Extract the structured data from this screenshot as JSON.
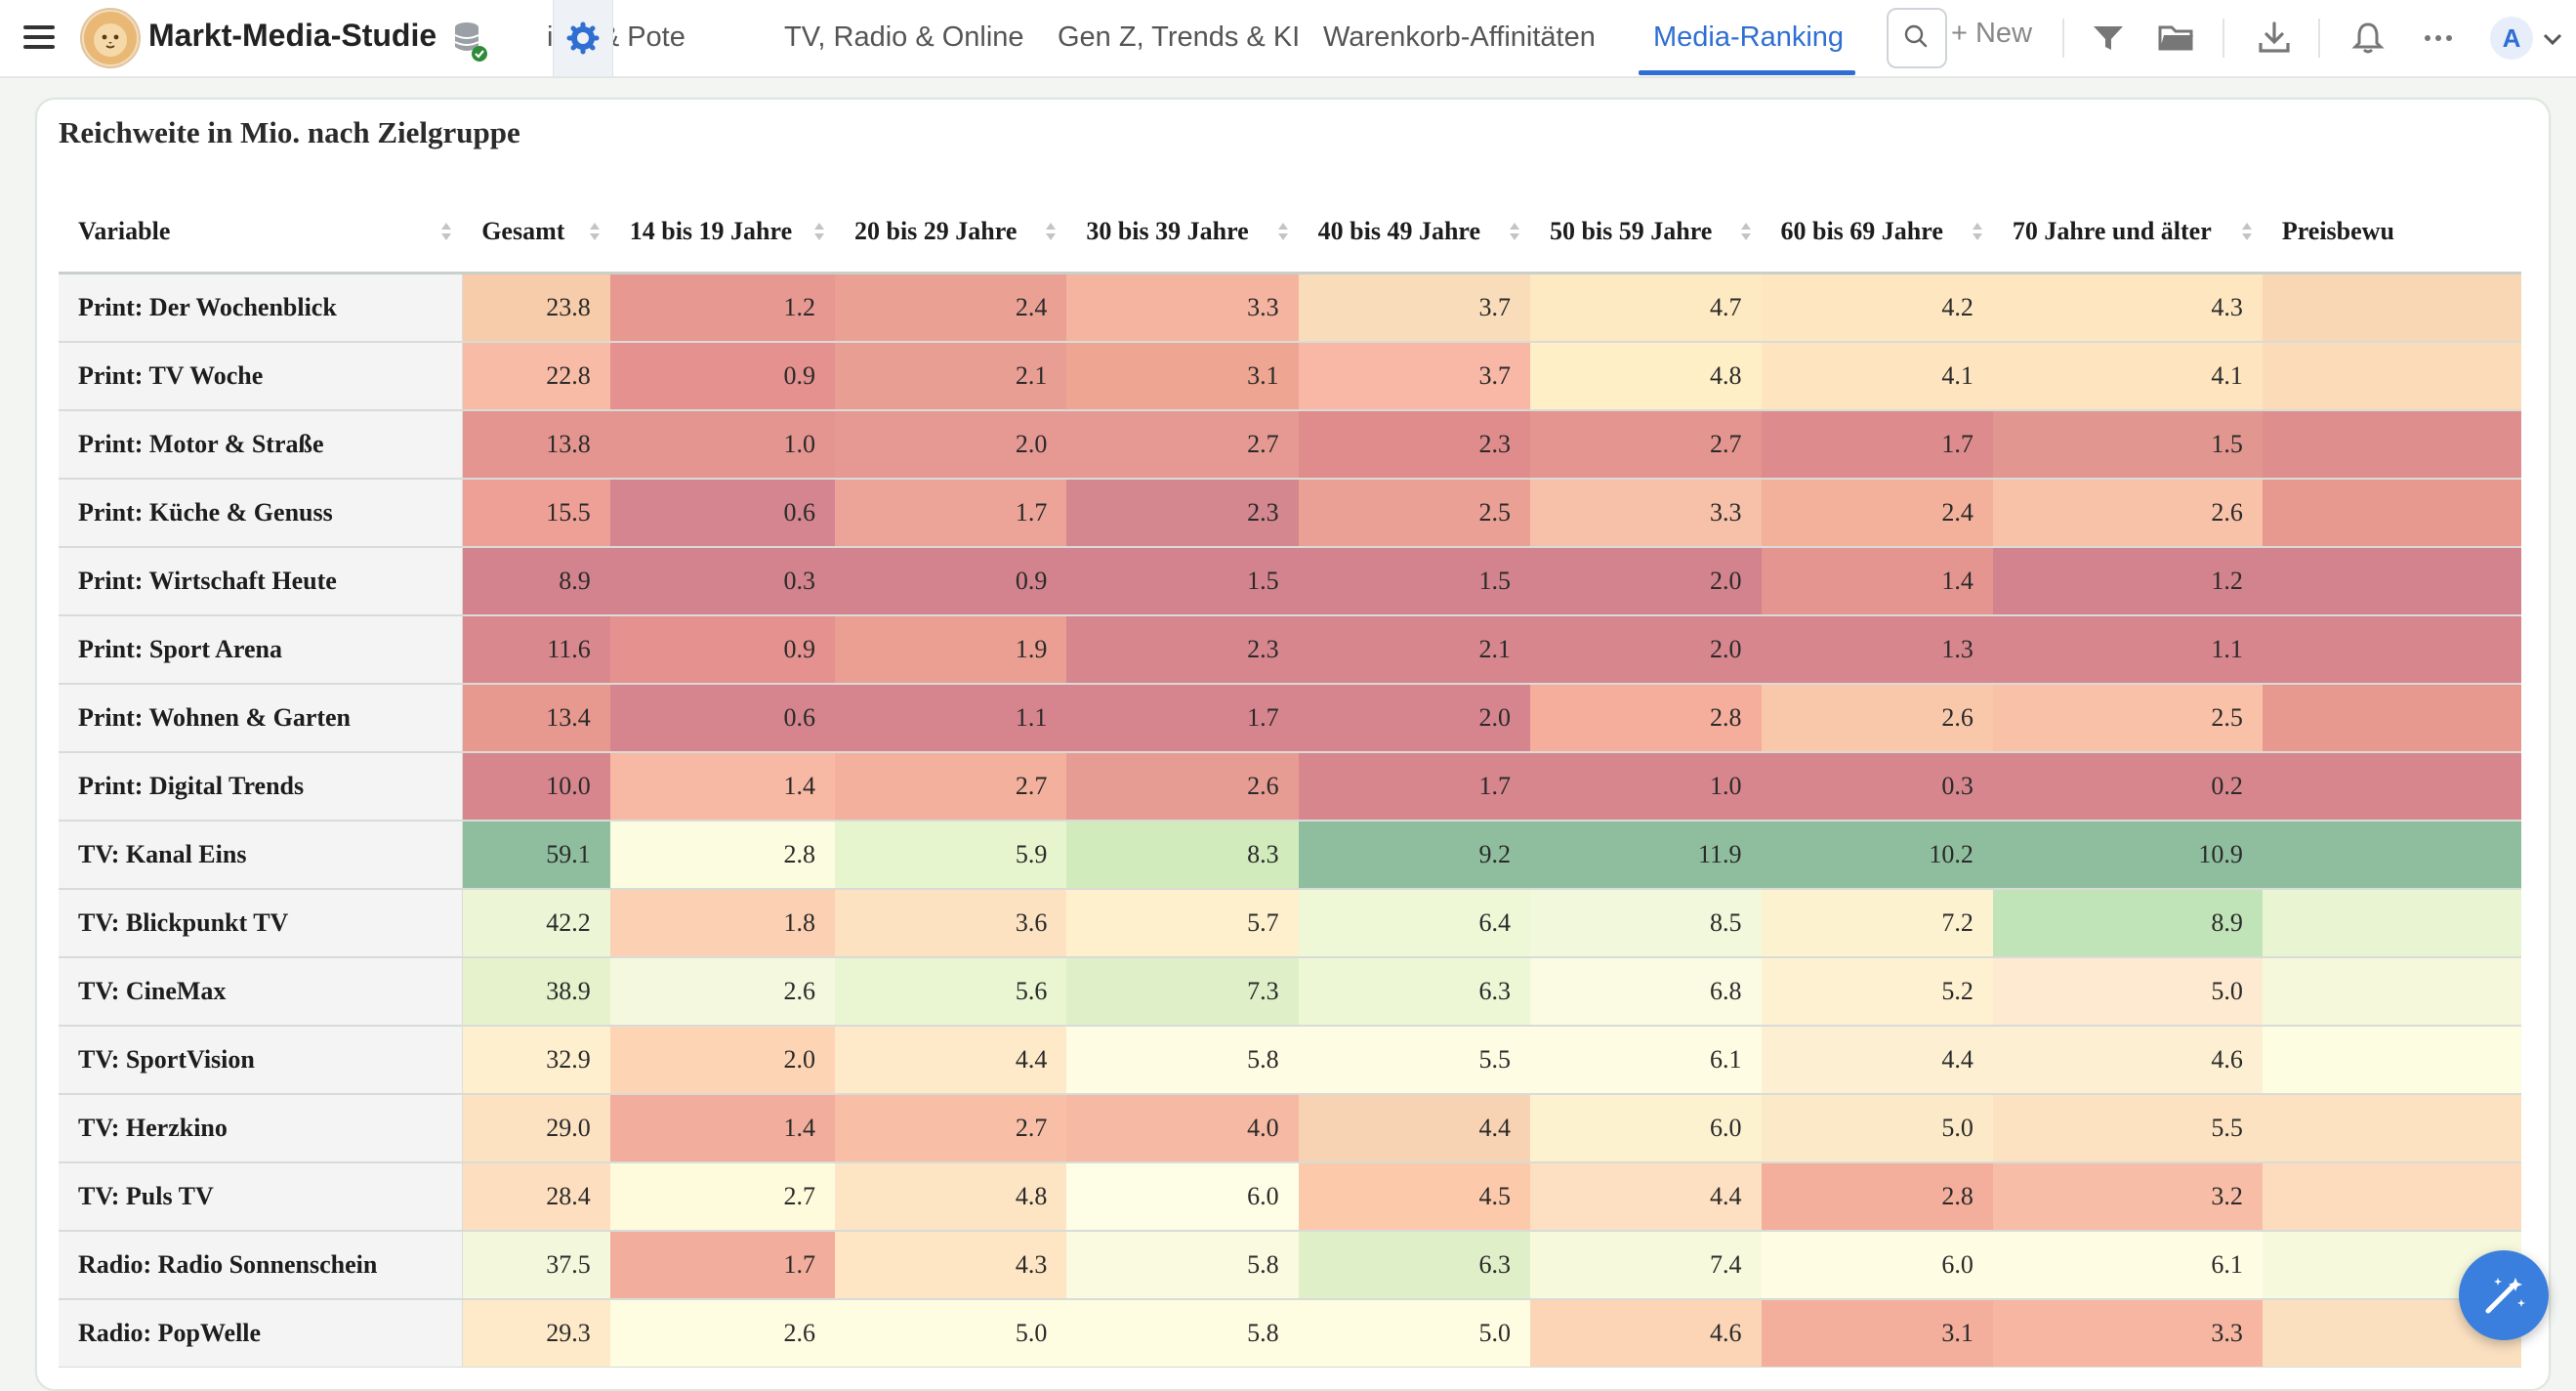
{
  "app": {
    "title": "Markt-Media-Studie"
  },
  "tabs": [
    {
      "label": "iten & Pote",
      "active": false
    },
    {
      "label": "TV, Radio & Online",
      "active": false
    },
    {
      "label": "Gen Z, Trends & KI",
      "active": false
    },
    {
      "label": "Warenkorb-Affinitäten",
      "active": false
    },
    {
      "label": "Media-Ranking",
      "active": true
    }
  ],
  "toolbar": {
    "new_label": "+ New",
    "avatar_initial": "A"
  },
  "icons": {
    "menu": "hamburger-icon",
    "database": "database-icon",
    "settings": "gear-icon",
    "search": "search-icon",
    "filter": "filter-icon",
    "folder": "folder-icon",
    "download": "download-icon",
    "notifications": "bell-icon",
    "more": "ellipsis-icon",
    "fab": "magic-wand-icon"
  },
  "colors": {
    "accent": "#2f6fd1",
    "fab": "#3b7fde"
  },
  "table": {
    "title": "Reichweite in Mio. nach Zielgruppe",
    "columns": [
      "Variable",
      "Gesamt",
      "14 bis 19 Jahre",
      "20 bis 29 Jahre",
      "30 bis 39 Jahre",
      "40 bis 49 Jahre",
      "50 bis 59 Jahre",
      "60 bis 69 Jahre",
      "70 Jahre und älter",
      "Preisbewu"
    ],
    "rows": [
      {
        "label": "Print: Der Wochenblick",
        "values": [
          "23.8",
          "1.2",
          "2.4",
          "3.3",
          "3.7",
          "4.7",
          "4.2",
          "4.3",
          ""
        ],
        "colors": [
          "#f6ccaa",
          "#e79891",
          "#eaa194",
          "#f4b4a0",
          "#f9ddbb",
          "#fde9c2",
          "#fde6c0",
          "#fde6c0",
          "#f9d6b4"
        ]
      },
      {
        "label": "Print: TV Woche",
        "values": [
          "22.8",
          "0.9",
          "2.1",
          "3.1",
          "3.7",
          "4.8",
          "4.1",
          "4.1",
          ""
        ],
        "colors": [
          "#f8bba6",
          "#e4918f",
          "#e99e93",
          "#eea592",
          "#f8b8a5",
          "#feefc6",
          "#fee5bf",
          "#fee5bf",
          "#fcdcb8"
        ]
      },
      {
        "label": "Print: Motor & Straße",
        "values": [
          "13.8",
          "1.0",
          "2.0",
          "2.7",
          "2.3",
          "2.7",
          "1.7",
          "1.5",
          ""
        ],
        "colors": [
          "#e5958f",
          "#e5958f",
          "#e69993",
          "#e69993",
          "#e08c8d",
          "#e5958f",
          "#de8b8d",
          "#e19790",
          "#df8e8e"
        ]
      },
      {
        "label": "Print: Küche & Genuss",
        "values": [
          "15.5",
          "0.6",
          "1.7",
          "2.3",
          "2.5",
          "3.3",
          "2.4",
          "2.6",
          ""
        ],
        "colors": [
          "#ee9f96",
          "#d4858f",
          "#eba497",
          "#d4878f",
          "#eaa094",
          "#f7c0a8",
          "#f3b09b",
          "#f8c2a8",
          "#e7988f"
        ]
      },
      {
        "label": "Print: Wirtschaft Heute",
        "values": [
          "8.9",
          "0.3",
          "0.9",
          "1.5",
          "1.5",
          "2.0",
          "1.4",
          "1.2",
          ""
        ],
        "colors": [
          "#d3838d",
          "#d3838d",
          "#d3838d",
          "#d3838d",
          "#d3838d",
          "#d3838d",
          "#e49590",
          "#d3838d",
          "#d3838d"
        ]
      },
      {
        "label": "Print: Sport Arena",
        "values": [
          "11.6",
          "0.9",
          "1.9",
          "2.3",
          "2.1",
          "2.0",
          "1.3",
          "1.1",
          ""
        ],
        "colors": [
          "#d9888e",
          "#e4918f",
          "#eb9f93",
          "#d7868e",
          "#d7868e",
          "#d7868e",
          "#d7868e",
          "#d7868e",
          "#d7868e"
        ]
      },
      {
        "label": "Print: Wohnen & Garten",
        "values": [
          "13.4",
          "0.6",
          "1.1",
          "1.7",
          "2.0",
          "2.8",
          "2.6",
          "2.5",
          ""
        ],
        "colors": [
          "#e8998f",
          "#d6858e",
          "#d6858e",
          "#d6858e",
          "#d6858e",
          "#f5ae9c",
          "#f9c8ab",
          "#f8c1a8",
          "#e8998f"
        ]
      },
      {
        "label": "Print: Digital Trends",
        "values": [
          "10.0",
          "1.4",
          "2.7",
          "2.6",
          "1.7",
          "1.0",
          "0.3",
          "0.2",
          ""
        ],
        "colors": [
          "#d7868e",
          "#f8b9a4",
          "#f3b09d",
          "#e79c93",
          "#d7868e",
          "#d7868e",
          "#d7868e",
          "#d7868e",
          "#d7868e"
        ]
      },
      {
        "label": "TV: Kanal Eins",
        "values": [
          "59.1",
          "2.8",
          "5.9",
          "8.3",
          "9.2",
          "11.9",
          "10.2",
          "10.9",
          ""
        ],
        "colors": [
          "#8fbe9f",
          "#fbfce0",
          "#e7f5cf",
          "#d1ebbd",
          "#8fbe9f",
          "#8fbe9f",
          "#8fbe9f",
          "#8fbe9f",
          "#8fbe9f"
        ]
      },
      {
        "label": "TV: Blickpunkt TV",
        "values": [
          "42.2",
          "1.8",
          "3.6",
          "5.7",
          "6.4",
          "8.5",
          "7.2",
          "8.9",
          ""
        ],
        "colors": [
          "#ecf6d6",
          "#fcd0b2",
          "#fde2c2",
          "#fef0cd",
          "#eef7d6",
          "#f1f8db",
          "#fdf2d0",
          "#c0e4b8",
          "#e9f5d2"
        ]
      },
      {
        "label": "TV: CineMax",
        "values": [
          "38.9",
          "2.6",
          "5.6",
          "7.3",
          "6.3",
          "6.8",
          "5.2",
          "5.0",
          ""
        ],
        "colors": [
          "#e5f2cc",
          "#f4f8de",
          "#eaf5d2",
          "#dff0c8",
          "#edf6d5",
          "#fafbe2",
          "#fef1d2",
          "#fdead0",
          "#f6f8dc"
        ]
      },
      {
        "label": "TV: SportVision",
        "values": [
          "32.9",
          "2.0",
          "4.4",
          "5.8",
          "5.5",
          "6.1",
          "4.4",
          "4.6",
          ""
        ],
        "colors": [
          "#feefcf",
          "#fdd5b5",
          "#fee9c8",
          "#fefde4",
          "#fefde4",
          "#fefde4",
          "#fdf0d2",
          "#fdf0d2",
          "#fdfde2"
        ]
      },
      {
        "label": "TV: Herzkino",
        "values": [
          "29.0",
          "1.4",
          "2.7",
          "4.0",
          "4.4",
          "6.0",
          "5.0",
          "5.5",
          ""
        ],
        "colors": [
          "#fde2c2",
          "#f2ad9c",
          "#f8bfa6",
          "#f6b9a3",
          "#f7d3b4",
          "#fdf2d0",
          "#fce9c7",
          "#fde2c1",
          "#fde2c1"
        ]
      },
      {
        "label": "TV: Puls TV",
        "values": [
          "28.4",
          "2.7",
          "4.8",
          "6.0",
          "4.5",
          "4.4",
          "2.8",
          "3.2",
          ""
        ],
        "colors": [
          "#fddfc0",
          "#fdfbdc",
          "#fde5c4",
          "#fefde5",
          "#fccaab",
          "#fde0c1",
          "#f3ae9c",
          "#f8bda6",
          "#fcdcbc"
        ]
      },
      {
        "label": "Radio: Radio Sonnenschein",
        "values": [
          "37.5",
          "1.7",
          "4.3",
          "5.8",
          "6.3",
          "7.4",
          "6.0",
          "6.1",
          ""
        ],
        "colors": [
          "#f3f8dd",
          "#f2ad9c",
          "#fee6c4",
          "#f9fadf",
          "#dfefc8",
          "#f7f9dc",
          "#fefde3",
          "#fefde3",
          "#f6f9dc"
        ]
      },
      {
        "label": "Radio: PopWelle",
        "values": [
          "29.3",
          "2.6",
          "5.0",
          "5.8",
          "5.0",
          "4.6",
          "3.1",
          "3.3",
          ""
        ],
        "colors": [
          "#fee9c8",
          "#fefde2",
          "#fefde2",
          "#fefde2",
          "#fefde2",
          "#fbd5b6",
          "#f3ae9c",
          "#f6b6a1",
          "#fbe0c0"
        ]
      }
    ]
  }
}
